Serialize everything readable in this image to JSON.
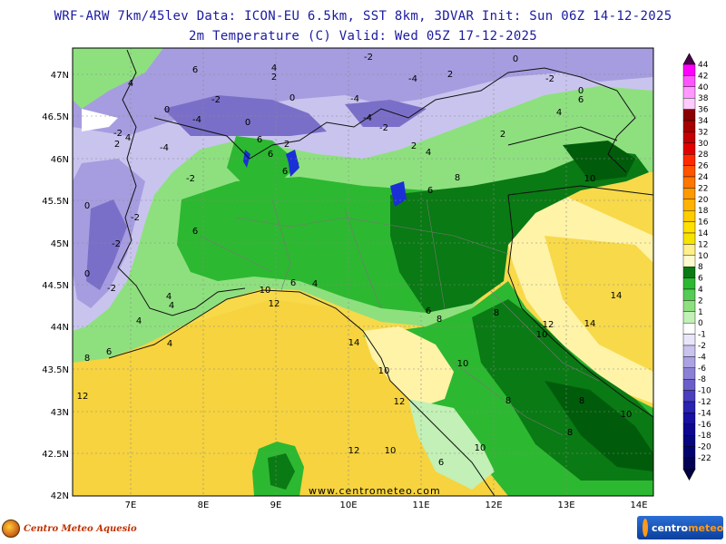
{
  "header": {
    "line1": "WRF-ARW 7km/45lev  Data: ICON-EU 6.5km, SST 8km, 3DVAR  Init: Sun 06Z 14-12-2025",
    "line2": "2m Temperature (C)  Valid: Wed 05Z 17-12-2025"
  },
  "map": {
    "lat_labels": [
      "47N",
      "46.5N",
      "46N",
      "45.5N",
      "45N",
      "44.5N",
      "44N",
      "43.5N",
      "43N",
      "42.5N",
      "42N"
    ],
    "lon_labels": [
      "7E",
      "8E",
      "9E",
      "10E",
      "11E",
      "12E",
      "13E",
      "14E"
    ],
    "watermark": "www.centrometeo.com",
    "colors": {
      "sea_light": "#fff3a8",
      "sea_warm": "#f7d94a",
      "warm_plain": "#f2c832",
      "green_light": "#8ee07f",
      "green_mid": "#2db831",
      "green_dark": "#0a7a14",
      "green_deep": "#005c0a",
      "alpine_light": "#d7d2f2",
      "alpine_mid": "#a69de0",
      "alpine_dark": "#7a6fc8",
      "lake": "#1a2fd6"
    },
    "contour_labels": [
      {
        "text": "-2",
        "cls": "a"
      },
      {
        "text": "6",
        "cls": "b"
      },
      {
        "text": "4",
        "cls": "c"
      },
      {
        "text": "2",
        "cls": "d"
      },
      {
        "text": "-4",
        "cls": "e"
      },
      {
        "text": "2",
        "cls": "f"
      },
      {
        "text": "0",
        "cls": "g"
      },
      {
        "text": "0",
        "cls": "h"
      },
      {
        "text": "-2",
        "cls": "i"
      },
      {
        "text": "4",
        "cls": "j"
      },
      {
        "text": "6",
        "cls": "k"
      },
      {
        "text": "0",
        "cls": "l"
      },
      {
        "text": "-2",
        "cls": "m"
      },
      {
        "text": "-4",
        "cls": "n"
      },
      {
        "text": "0",
        "cls": "o"
      },
      {
        "text": "4",
        "cls": "p"
      },
      {
        "text": "-4",
        "cls": "q"
      },
      {
        "text": "-2",
        "cls": "r"
      },
      {
        "text": "-4",
        "cls": "s"
      },
      {
        "text": "-2",
        "cls": "t"
      },
      {
        "text": "6",
        "cls": "u"
      },
      {
        "text": "2",
        "cls": "v"
      },
      {
        "text": "4",
        "cls": "w"
      },
      {
        "text": "2",
        "cls": "x"
      },
      {
        "text": "0",
        "cls": "y"
      },
      {
        "text": "2",
        "cls": "z"
      },
      {
        "text": "4",
        "cls": "aa"
      },
      {
        "text": "-4",
        "cls": "ab"
      },
      {
        "text": "-2",
        "cls": "ac"
      },
      {
        "text": "2",
        "cls": "ad"
      },
      {
        "text": "6",
        "cls": "ae"
      },
      {
        "text": "8",
        "cls": "af"
      },
      {
        "text": "6",
        "cls": "ag"
      },
      {
        "text": "6",
        "cls": "ah"
      },
      {
        "text": "10",
        "cls": "ai"
      },
      {
        "text": "0",
        "cls": "aj"
      },
      {
        "text": "-2",
        "cls": "ak"
      },
      {
        "text": "-2",
        "cls": "al"
      },
      {
        "text": "0",
        "cls": "am"
      },
      {
        "text": "4",
        "cls": "an"
      },
      {
        "text": "6",
        "cls": "ao"
      },
      {
        "text": "-2",
        "cls": "ap"
      },
      {
        "text": "4",
        "cls": "aq"
      },
      {
        "text": "6",
        "cls": "ar"
      },
      {
        "text": "4",
        "cls": "as"
      },
      {
        "text": "10",
        "cls": "at"
      },
      {
        "text": "12",
        "cls": "au"
      },
      {
        "text": "6",
        "cls": "av"
      },
      {
        "text": "4",
        "cls": "aw"
      },
      {
        "text": "14",
        "cls": "ax"
      },
      {
        "text": "8",
        "cls": "ay"
      },
      {
        "text": "8",
        "cls": "az"
      },
      {
        "text": "8",
        "cls": "ba"
      },
      {
        "text": "12",
        "cls": "bb"
      },
      {
        "text": "10",
        "cls": "bc"
      },
      {
        "text": "14",
        "cls": "bd"
      },
      {
        "text": "4",
        "cls": "be"
      },
      {
        "text": "6",
        "cls": "bf"
      },
      {
        "text": "8",
        "cls": "bg"
      },
      {
        "text": "10",
        "cls": "bh"
      },
      {
        "text": "10",
        "cls": "bi"
      },
      {
        "text": "12",
        "cls": "bj"
      },
      {
        "text": "10",
        "cls": "bk"
      },
      {
        "text": "8",
        "cls": "bl"
      },
      {
        "text": "8",
        "cls": "bm"
      },
      {
        "text": "12",
        "cls": "bn"
      },
      {
        "text": "6",
        "cls": "bo"
      },
      {
        "text": "10",
        "cls": "bp"
      },
      {
        "text": "12",
        "cls": "bq"
      },
      {
        "text": "14",
        "cls": "br"
      },
      {
        "text": "10",
        "cls": "bs"
      }
    ]
  },
  "colorbar": {
    "levels": [
      "44",
      "42",
      "40",
      "38",
      "36",
      "34",
      "32",
      "30",
      "28",
      "26",
      "24",
      "22",
      "20",
      "18",
      "16",
      "14",
      "12",
      "10",
      "8",
      "6",
      "4",
      "2",
      "1",
      "0",
      "-1",
      "-2",
      "-4",
      "-6",
      "-8",
      "-10",
      "-12",
      "-14",
      "-16",
      "-18",
      "-20",
      "-22"
    ],
    "colors": [
      "#ff00ff",
      "#ff55ff",
      "#ff99ff",
      "#ffccff",
      "#8b0000",
      "#a50000",
      "#c40000",
      "#e00000",
      "#ff2a00",
      "#ff5500",
      "#ff7700",
      "#ff9900",
      "#ffb300",
      "#ffcc00",
      "#ffe000",
      "#f7e300",
      "#fff08c",
      "#fffacd",
      "#0a7a14",
      "#2db831",
      "#55cc55",
      "#8ee07f",
      "#c2f0b6",
      "#ffffff",
      "#e8e6f8",
      "#c9c4ee",
      "#aaa2e2",
      "#8a80d6",
      "#6a5fca",
      "#4a3fbe",
      "#2a22b0",
      "#1810a0",
      "#0c0890",
      "#060680",
      "#030370",
      "#020255"
    ],
    "top_color": "#4b004b",
    "bottom_color": "#000040"
  },
  "footer": {
    "left_logo": "Centro Meteo Aquesio",
    "right_logo_a": "centro",
    "right_logo_b": "meteo"
  }
}
